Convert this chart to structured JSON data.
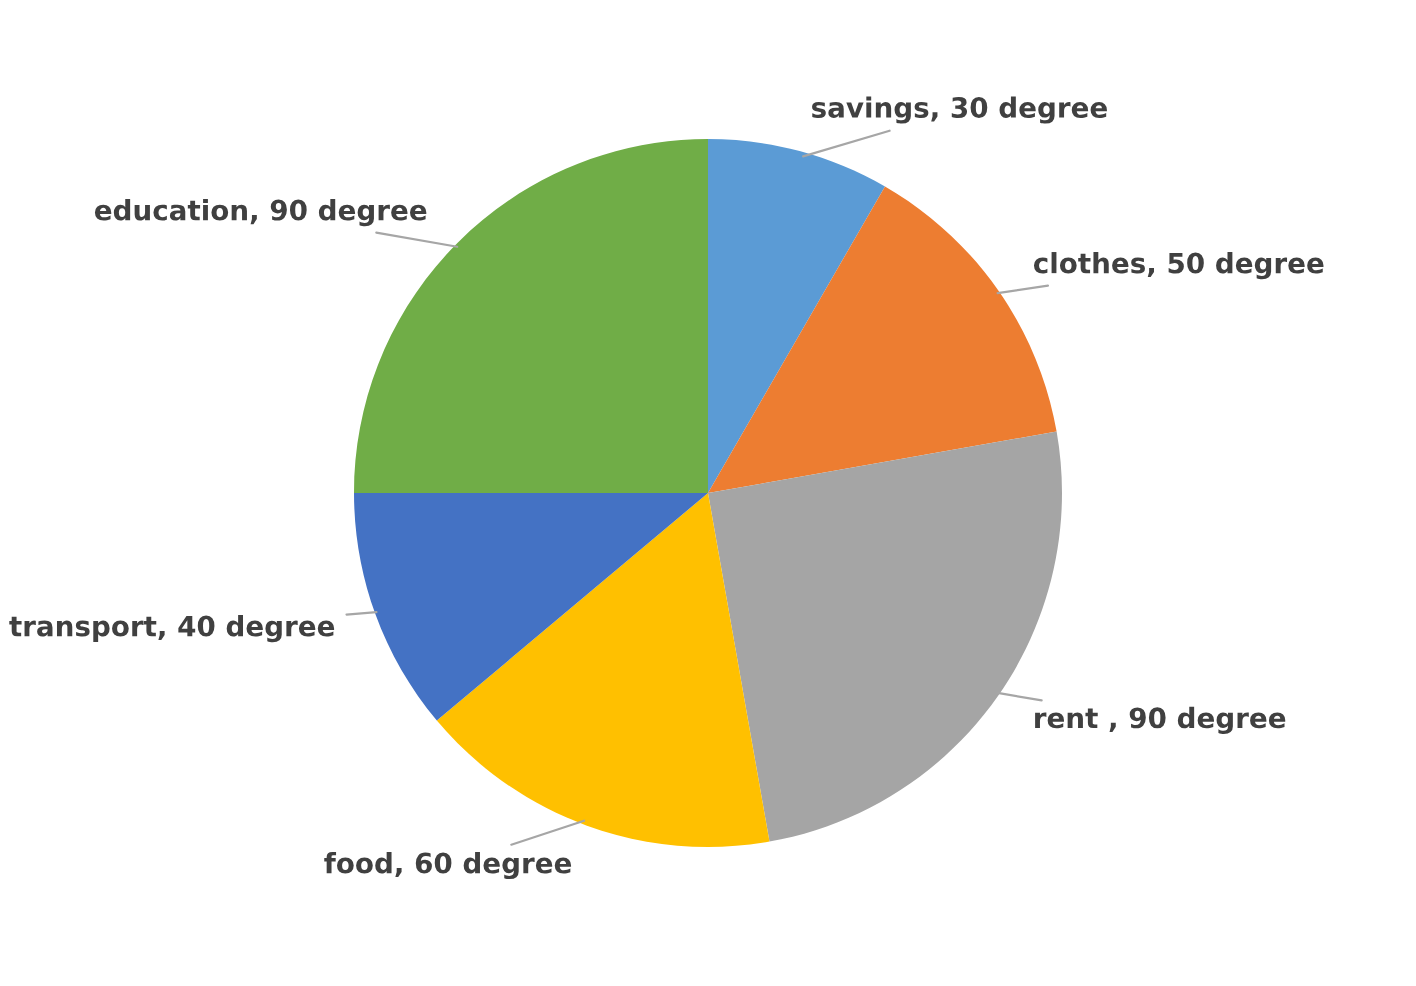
{
  "chart_data": {
    "type": "pie",
    "categories": [
      "savings",
      "clothes",
      "rent ",
      "food",
      "transport",
      "education"
    ],
    "values": [
      30,
      50,
      90,
      60,
      40,
      90
    ],
    "value_labels": [
      "30 degree",
      "50 degree",
      "90 degree",
      "60 degree",
      "40 degree",
      "90 degree"
    ],
    "colors": [
      "#5b9bd5",
      "#ed7d31",
      "#a5a5a5",
      "#ffc000",
      "#4472c4",
      "#70ad47"
    ],
    "legend": false
  }
}
